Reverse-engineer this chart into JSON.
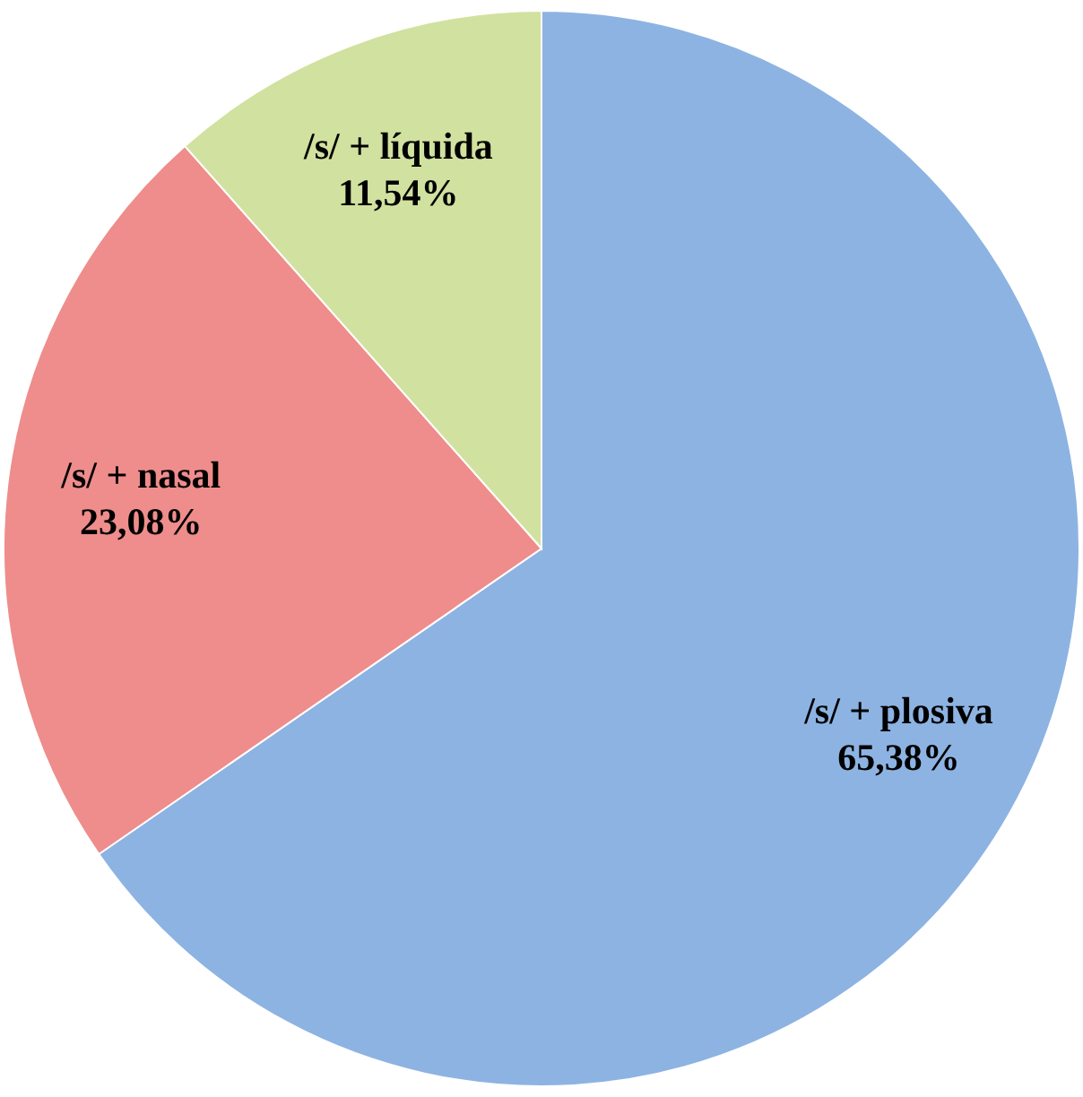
{
  "chart_data": {
    "type": "pie",
    "categories": [
      "/s/ + plosiva",
      "/s/ + nasal",
      "/s/ + líquida"
    ],
    "values": [
      65.38,
      23.08,
      11.54
    ],
    "colors": [
      "#8db3e2",
      "#ee8d8b",
      "#d1e19f"
    ],
    "value_labels": [
      "65,38%",
      "23,08%",
      "11,54%"
    ]
  }
}
